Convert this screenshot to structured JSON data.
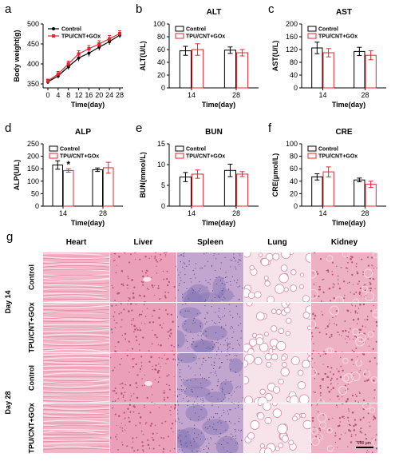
{
  "chart_data": [
    {
      "id": "a",
      "type": "line",
      "title": "",
      "xlabel": "Time(day)",
      "ylabel": "Body weight(g)",
      "x": [
        0,
        4,
        8,
        12,
        16,
        20,
        24,
        28
      ],
      "xticks": [
        0,
        4,
        8,
        12,
        16,
        20,
        24,
        28
      ],
      "ylim": [
        340,
        500
      ],
      "yticks": [
        350,
        400,
        450,
        500
      ],
      "legend": "top-left",
      "series": [
        {
          "name": "Control",
          "color": "#000000",
          "marker": "circle",
          "values": [
            355,
            370,
            393,
            415,
            427,
            442,
            456,
            472
          ],
          "errors": [
            5,
            6,
            7,
            8,
            8,
            8,
            8,
            7
          ]
        },
        {
          "name": "TPU/CNT+GOx",
          "color": "#e8242d",
          "marker": "square",
          "values": [
            357,
            375,
            400,
            425,
            438,
            450,
            463,
            476
          ],
          "errors": [
            5,
            6,
            7,
            8,
            8,
            8,
            8,
            7
          ]
        }
      ]
    },
    {
      "id": "b",
      "type": "bar",
      "title": "ALT",
      "xlabel": "Time(day)",
      "ylabel": "ALT(U/L)",
      "categories": [
        "14",
        "28"
      ],
      "ylim": [
        0,
        100
      ],
      "yticks": [
        0,
        20,
        40,
        60,
        80,
        100
      ],
      "legend": "top-left",
      "series": [
        {
          "name": "Control",
          "color": "#000000",
          "values": [
            58,
            59
          ],
          "errors": [
            7,
            5
          ]
        },
        {
          "name": "TPU/CNT+GOx",
          "color": "#e8242d",
          "values": [
            60,
            55
          ],
          "errors": [
            9,
            5
          ]
        }
      ],
      "annotations": []
    },
    {
      "id": "c",
      "type": "bar",
      "title": "AST",
      "xlabel": "Time(day)",
      "ylabel": "AST(U/L)",
      "categories": [
        "14",
        "28"
      ],
      "ylim": [
        0,
        200
      ],
      "yticks": [
        0,
        40,
        80,
        120,
        160,
        200
      ],
      "legend": "top-left",
      "series": [
        {
          "name": "Control",
          "color": "#000000",
          "values": [
            125,
            114
          ],
          "errors": [
            18,
            13
          ]
        },
        {
          "name": "TPU/CNT+GOx",
          "color": "#e8242d",
          "values": [
            110,
            102
          ],
          "errors": [
            13,
            14
          ]
        }
      ],
      "annotations": []
    },
    {
      "id": "d",
      "type": "bar",
      "title": "ALP",
      "xlabel": "Time(day)",
      "ylabel": "ALP(U/L)",
      "categories": [
        "14",
        "28"
      ],
      "ylim": [
        0,
        250
      ],
      "yticks": [
        0,
        50,
        100,
        150,
        200,
        250
      ],
      "legend": "top-left",
      "series": [
        {
          "name": "Control",
          "color": "#000000",
          "values": [
            165,
            146
          ],
          "errors": [
            17,
            7
          ]
        },
        {
          "name": "TPU/CNT+GOx",
          "color": "#e8242d",
          "values": [
            143,
            154
          ],
          "errors": [
            7,
            22
          ]
        }
      ],
      "annotations": [
        {
          "text": "*",
          "category": "14",
          "series": 1
        }
      ]
    },
    {
      "id": "e",
      "type": "bar",
      "title": "BUN",
      "xlabel": "Time(day)",
      "ylabel": "BUN(mmol/L)",
      "categories": [
        "14",
        "28"
      ],
      "ylim": [
        0,
        15
      ],
      "yticks": [
        0,
        5,
        10,
        15
      ],
      "legend": "top-left",
      "series": [
        {
          "name": "Control",
          "color": "#000000",
          "values": [
            7.0,
            8.6
          ],
          "errors": [
            1.1,
            1.5
          ]
        },
        {
          "name": "TPU/CNT+GOx",
          "color": "#e8242d",
          "values": [
            7.7,
            7.7
          ],
          "errors": [
            1.0,
            0.6
          ]
        }
      ],
      "annotations": []
    },
    {
      "id": "f",
      "type": "bar",
      "title": "CRE",
      "xlabel": "Time(day)",
      "ylabel": "CRE(μmol/L)",
      "categories": [
        "14",
        "28"
      ],
      "ylim": [
        0,
        100
      ],
      "yticks": [
        0,
        20,
        40,
        60,
        80,
        100
      ],
      "legend": "top-left",
      "series": [
        {
          "name": "Control",
          "color": "#000000",
          "values": [
            47,
            42
          ],
          "errors": [
            5,
            3
          ]
        },
        {
          "name": "TPU/CNT+GOx",
          "color": "#e8242d",
          "values": [
            55,
            35
          ],
          "errors": [
            8,
            5
          ]
        }
      ],
      "annotations": []
    }
  ],
  "histology": {
    "panel_letter": "g",
    "columns": [
      {
        "label": "Heart",
        "tissue": "heart"
      },
      {
        "label": "Liver",
        "tissue": "liver"
      },
      {
        "label": "Spleen",
        "tissue": "spleen"
      },
      {
        "label": "Lung",
        "tissue": "lung"
      },
      {
        "label": "Kidney",
        "tissue": "kidney"
      }
    ],
    "groups": [
      {
        "label": "Day 14",
        "rows": [
          "Control",
          "TPU/CNT+GOx"
        ]
      },
      {
        "label": "Day 28",
        "rows": [
          "Control",
          "TPU/CNT+GOx"
        ]
      }
    ],
    "scale_bar_label": "200 μm"
  }
}
